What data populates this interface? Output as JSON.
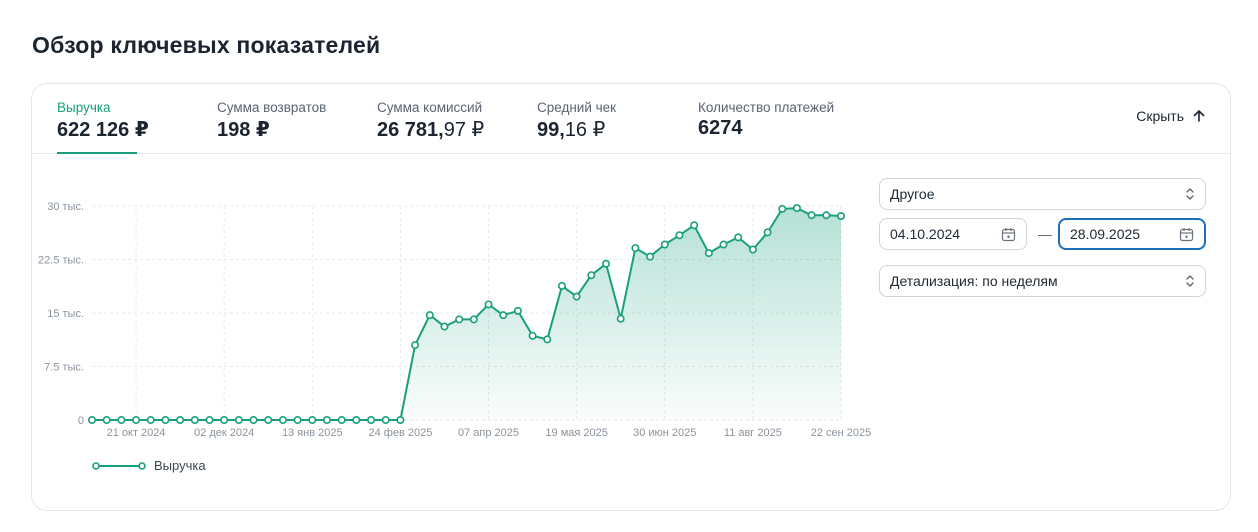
{
  "page": {
    "title": "Обзор ключевых показателей"
  },
  "tabs": [
    {
      "label": "Выручка",
      "value_int": "622 126 ₽",
      "value_frac": ""
    },
    {
      "label": "Сумма возвратов",
      "value_int": "198 ₽",
      "value_frac": ""
    },
    {
      "label": "Сумма комиссий",
      "value_int": "26 781,",
      "value_frac": "97 ₽"
    },
    {
      "label": "Средний чек",
      "value_int": "99,",
      "value_frac": "16 ₽"
    },
    {
      "label": "Количество платежей",
      "value_int": "6274",
      "value_frac": ""
    }
  ],
  "hide_button": {
    "label": "Скрыть",
    "icon": "arrow-up-icon"
  },
  "controls": {
    "period_select": "Другое",
    "date_from": "04.10.2024",
    "date_separator": "—",
    "date_to": "28.09.2025",
    "detail_select": "Детализация: по неделям"
  },
  "colors": {
    "accent": "#17a07b",
    "focus": "#1d6fb8"
  },
  "chart_data": {
    "type": "area",
    "y_ticks": [
      "0",
      "7.5 тыс.",
      "15 тыс.",
      "22.5 тыс.",
      "30 тыс."
    ],
    "y_tick_values": [
      0,
      7500,
      15000,
      22500,
      30000
    ],
    "ylim": [
      0,
      30000
    ],
    "x_tick_labels": [
      "21 окт 2024",
      "02 дек 2024",
      "13 янв 2025",
      "24 фев 2025",
      "07 апр 2025",
      "19 мая 2025",
      "30 июн 2025",
      "11 авг 2025",
      "22 сен 2025"
    ],
    "x_tick_indices": [
      3,
      9,
      15,
      21,
      27,
      33,
      39,
      45,
      51
    ],
    "grid": true,
    "legend_position": "bottom-left",
    "series": [
      {
        "name": "Выручка",
        "values": [
          0,
          0,
          0,
          0,
          0,
          0,
          0,
          0,
          0,
          0,
          0,
          0,
          0,
          0,
          0,
          0,
          0,
          0,
          0,
          0,
          0,
          0,
          10500,
          14700,
          13100,
          14100,
          14100,
          16200,
          14700,
          15300,
          11800,
          11300,
          18800,
          17300,
          20300,
          21900,
          14200,
          24100,
          22900,
          24600,
          25900,
          27300,
          23400,
          24600,
          25600,
          23900,
          26300,
          29600,
          29700,
          28700,
          28700,
          28600
        ]
      }
    ]
  }
}
